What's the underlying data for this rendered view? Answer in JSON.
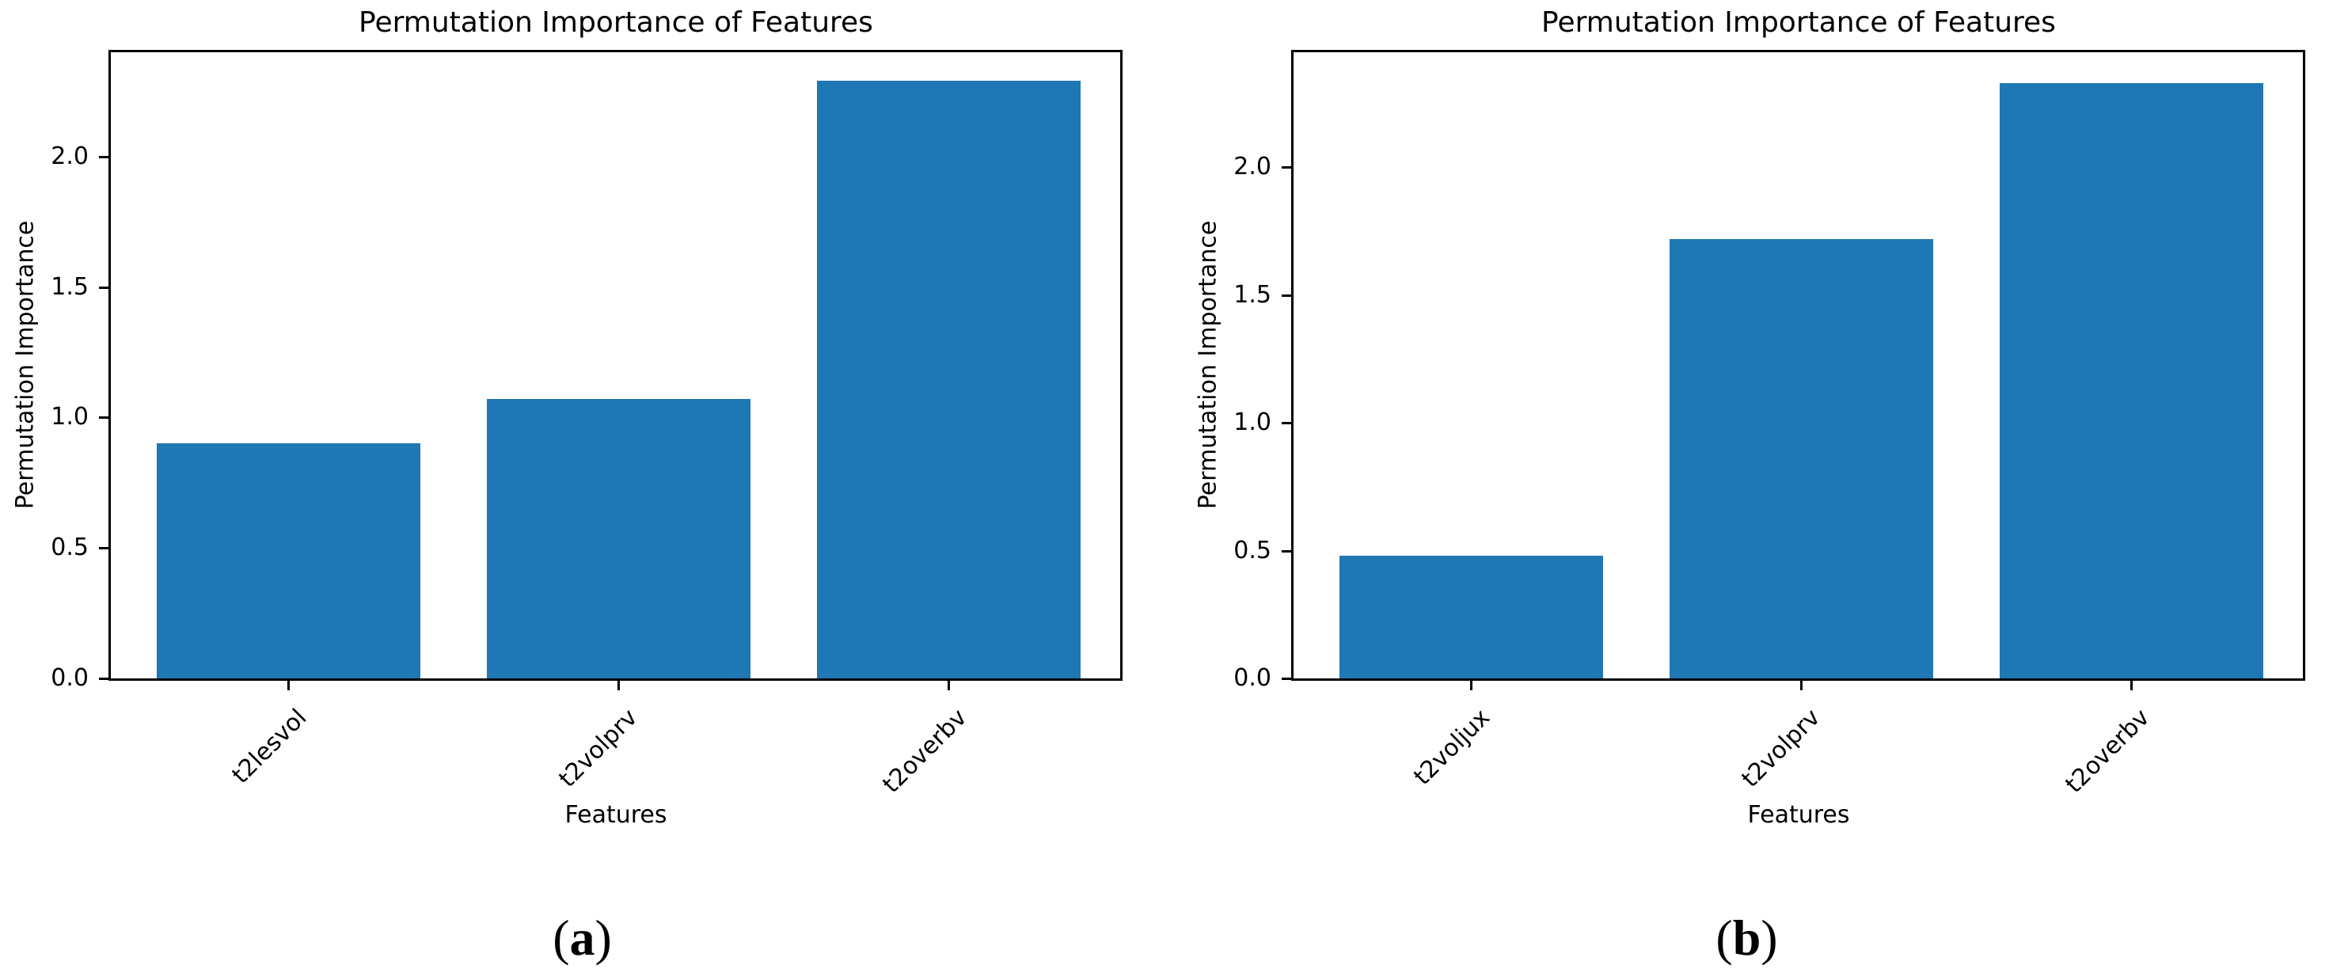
{
  "figure": {
    "background": "#ffffff",
    "text_color": "#000000"
  },
  "chart_data": [
    {
      "type": "bar",
      "title": "Permutation Importance of Features",
      "xlabel": "Features",
      "ylabel": "Permutation Importance",
      "categories": [
        "t2lesvol",
        "t2volprv",
        "t2overbv"
      ],
      "values": [
        0.9,
        1.07,
        2.29
      ],
      "ylim": [
        0,
        2.4
      ],
      "yticks": [
        0.0,
        0.5,
        1.0,
        1.5,
        2.0
      ],
      "ytick_labels": [
        "0.0",
        "0.5",
        "1.0",
        "1.5",
        "2.0"
      ],
      "xtick_rotation_deg": 45,
      "grid": false,
      "legend": "none",
      "bar_color": "#1f77b4",
      "caption": {
        "open": "(",
        "letter": "a",
        "close": ")"
      }
    },
    {
      "type": "bar",
      "title": "Permutation Importance of Features",
      "xlabel": "Features",
      "ylabel": "Permutation Importance",
      "categories": [
        "t2voljux",
        "t2volprv",
        "t2overbv"
      ],
      "values": [
        0.48,
        1.72,
        2.33
      ],
      "ylim": [
        0,
        2.45
      ],
      "yticks": [
        0.0,
        0.5,
        1.0,
        1.5,
        2.0
      ],
      "ytick_labels": [
        "0.0",
        "0.5",
        "1.0",
        "1.5",
        "2.0"
      ],
      "xtick_rotation_deg": 45,
      "grid": false,
      "legend": "none",
      "bar_color": "#1f77b4",
      "caption": {
        "open": "(",
        "letter": "b",
        "close": ")"
      }
    }
  ]
}
